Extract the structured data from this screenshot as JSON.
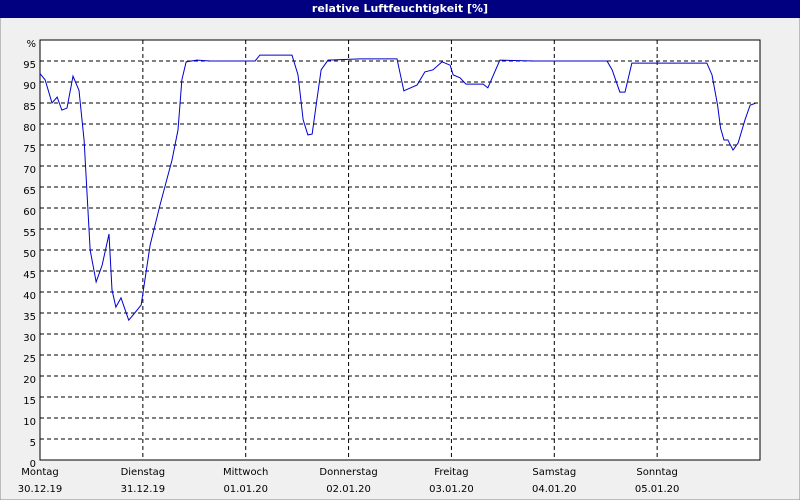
{
  "chart_data": {
    "type": "line",
    "title": "relative Luftfeuchtigkeit [%]",
    "xlim": [
      0,
      168
    ],
    "xticks": [
      {
        "value": 0,
        "label": "Montag"
      },
      {
        "value": 24,
        "label": "Dienstag"
      },
      {
        "value": 48,
        "label": "Mittwoch"
      },
      {
        "value": 72,
        "label": "Donnerstag"
      },
      {
        "value": 96,
        "label": "Freitag"
      },
      {
        "value": 120,
        "label": "Samstag"
      },
      {
        "value": 144,
        "label": "Sonntag"
      }
    ],
    "xtick_dates": [
      "30.12.19",
      "31.12.19",
      "01.01.20",
      "02.01.20",
      "03.01.20",
      "04.01.20",
      "05.01.20"
    ],
    "ylim": [
      0,
      100
    ],
    "yticks": [
      0,
      5,
      10,
      15,
      20,
      25,
      30,
      35,
      40,
      45,
      50,
      55,
      60,
      65,
      70,
      75,
      80,
      85,
      90,
      95,
      {
        "value": 100,
        "label": "%"
      }
    ],
    "grid": true,
    "series": [
      {
        "color": "#0000cc",
        "x": [
          0,
          1.2,
          2.8,
          4,
          5.1,
          6.3,
          7.7,
          9.1,
          10.3,
          11.7,
          13.1,
          14.5,
          16.1,
          16.8,
          17.7,
          18.9,
          20.7,
          22.1,
          23.6,
          25.7,
          28,
          30.8,
          32.2,
          33.1,
          34.1,
          36.6,
          39.7,
          50.2,
          51.3,
          58.8,
          60.2,
          61.4,
          62.5,
          63.5,
          64.6,
          65.6,
          67.2,
          74.7,
          83.3,
          84.9,
          88,
          89.8,
          91.7,
          93.8,
          95.7,
          96.4,
          98,
          99.4,
          103.4,
          104.5,
          107.3,
          115.5,
          132.3,
          133.5,
          135.3,
          136.5,
          138.1,
          154,
          155.6,
          156.8,
          158.1,
          158.8,
          159.6,
          160.5,
          161.7,
          162.9,
          164.5,
          165.7,
          167.1
        ],
        "values": [
          92,
          90.5,
          85,
          86.4,
          83.3,
          83.8,
          91.4,
          88,
          76,
          50,
          42.4,
          46.4,
          53.8,
          40.5,
          36.4,
          38.6,
          33.3,
          35,
          36.9,
          51.2,
          60.7,
          71.4,
          78.6,
          90.5,
          94.8,
          95.2,
          95,
          95,
          96.4,
          96.4,
          91.7,
          81,
          77.4,
          77.6,
          85.7,
          92.9,
          95.2,
          95.5,
          95.5,
          87.9,
          89.3,
          92.4,
          92.9,
          94.8,
          94,
          91.7,
          91,
          89.5,
          89.5,
          88.6,
          95.2,
          95,
          95,
          92.9,
          87.6,
          87.6,
          94.5,
          94.5,
          94.5,
          91.7,
          84.5,
          79,
          76.2,
          76.2,
          73.8,
          75.5,
          81,
          84.5,
          85
        ]
      }
    ]
  }
}
